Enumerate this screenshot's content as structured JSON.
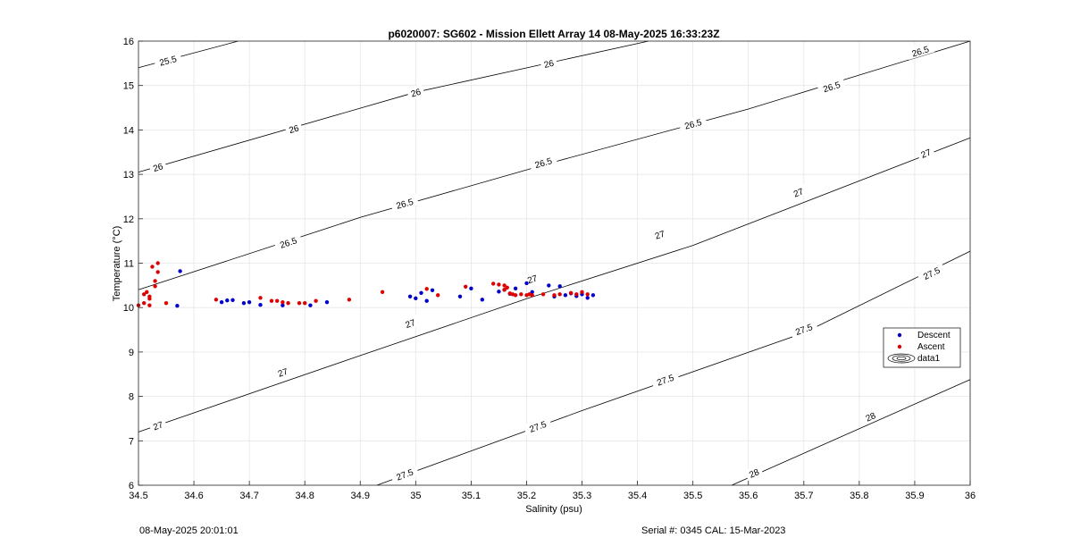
{
  "chart_data": {
    "type": "scatter",
    "title": "p6020007: SG602 - Mission Ellett Array 14 08-May-2025 16:33:23Z",
    "xlabel": "Salinity (psu)",
    "ylabel": "Temperature (°C)",
    "xlim": [
      34.5,
      36
    ],
    "ylim": [
      6,
      16
    ],
    "xticks": [
      "34.5",
      "34.6",
      "34.7",
      "34.8",
      "34.9",
      "35",
      "35.1",
      "35.2",
      "35.3",
      "35.4",
      "35.5",
      "35.6",
      "35.7",
      "35.8",
      "35.9",
      "36"
    ],
    "yticks": [
      "6",
      "7",
      "8",
      "9",
      "10",
      "11",
      "12",
      "13",
      "14",
      "15",
      "16"
    ],
    "grid": true,
    "legend_position": "right-middle",
    "legend": [
      {
        "label": "Descent",
        "color": "#0000cc",
        "marker": "dot"
      },
      {
        "label": "Ascent",
        "color": "#dd0000",
        "marker": "dot"
      },
      {
        "label": "data1",
        "color": "#000000",
        "marker": "contour"
      }
    ],
    "contours": [
      {
        "level": "25.5",
        "points": [
          [
            34.5,
            15.4
          ],
          [
            34.68,
            16.0
          ]
        ],
        "labels": [
          {
            "x": 34.553,
            "y": 15.57
          }
        ]
      },
      {
        "level": "26",
        "points": [
          [
            34.5,
            13.05
          ],
          [
            35.0,
            14.85
          ],
          [
            35.42,
            16.0
          ]
        ],
        "labels": [
          {
            "x": 34.535,
            "y": 13.17
          },
          {
            "x": 34.78,
            "y": 14.03
          },
          {
            "x": 35.0,
            "y": 14.85
          },
          {
            "x": 35.24,
            "y": 15.5
          }
        ]
      },
      {
        "level": "26.5",
        "points": [
          [
            34.5,
            10.4
          ],
          [
            34.9,
            12.03
          ],
          [
            35.25,
            13.28
          ],
          [
            35.6,
            14.47
          ],
          [
            36.0,
            16.0
          ]
        ],
        "labels": [
          {
            "x": 34.77,
            "y": 11.47
          },
          {
            "x": 34.98,
            "y": 12.35
          },
          {
            "x": 35.23,
            "y": 13.27
          },
          {
            "x": 35.5,
            "y": 14.14
          },
          {
            "x": 35.75,
            "y": 14.98
          },
          {
            "x": 35.91,
            "y": 15.78
          }
        ]
      },
      {
        "level": "27",
        "points": [
          [
            34.5,
            7.2
          ],
          [
            34.9,
            8.92
          ],
          [
            35.2,
            10.2
          ],
          [
            35.5,
            11.4
          ],
          [
            36.0,
            13.82
          ]
        ],
        "labels": [
          {
            "x": 34.535,
            "y": 7.35
          },
          {
            "x": 34.76,
            "y": 8.55
          },
          {
            "x": 34.99,
            "y": 9.65
          },
          {
            "x": 35.21,
            "y": 10.65
          },
          {
            "x": 35.44,
            "y": 11.65
          },
          {
            "x": 35.69,
            "y": 12.6
          },
          {
            "x": 35.92,
            "y": 13.48
          }
        ]
      },
      {
        "level": "27.5",
        "points": [
          [
            34.93,
            6.0
          ],
          [
            35.3,
            7.68
          ],
          [
            35.7,
            9.43
          ],
          [
            36.0,
            11.27
          ]
        ],
        "labels": [
          {
            "x": 34.98,
            "y": 6.25
          },
          {
            "x": 35.22,
            "y": 7.33
          },
          {
            "x": 35.45,
            "y": 8.38
          },
          {
            "x": 35.7,
            "y": 9.52
          },
          {
            "x": 35.93,
            "y": 10.78
          }
        ]
      },
      {
        "level": "28",
        "points": [
          [
            35.57,
            6.0
          ],
          [
            36.0,
            8.38
          ]
        ],
        "labels": [
          {
            "x": 35.61,
            "y": 6.28
          },
          {
            "x": 35.82,
            "y": 7.55
          }
        ]
      }
    ],
    "series": [
      {
        "name": "Descent",
        "color": "#0000cc",
        "points": [
          [
            34.575,
            10.82
          ],
          [
            34.57,
            10.04
          ],
          [
            34.65,
            10.12
          ],
          [
            34.66,
            10.16
          ],
          [
            34.67,
            10.17
          ],
          [
            34.69,
            10.1
          ],
          [
            34.7,
            10.12
          ],
          [
            34.72,
            10.06
          ],
          [
            34.76,
            10.05
          ],
          [
            34.81,
            10.05
          ],
          [
            34.84,
            10.12
          ],
          [
            34.99,
            10.25
          ],
          [
            35.0,
            10.21
          ],
          [
            35.01,
            10.33
          ],
          [
            35.02,
            10.15
          ],
          [
            35.03,
            10.39
          ],
          [
            35.08,
            10.25
          ],
          [
            35.1,
            10.43
          ],
          [
            35.12,
            10.18
          ],
          [
            35.15,
            10.36
          ],
          [
            35.16,
            10.4
          ],
          [
            35.17,
            10.31
          ],
          [
            35.18,
            10.43
          ],
          [
            35.2,
            10.55
          ],
          [
            35.21,
            10.35
          ],
          [
            35.24,
            10.5
          ],
          [
            35.25,
            10.25
          ],
          [
            35.26,
            10.48
          ],
          [
            35.27,
            10.28
          ],
          [
            35.28,
            10.32
          ],
          [
            35.29,
            10.26
          ],
          [
            35.3,
            10.3
          ],
          [
            35.31,
            10.22
          ],
          [
            35.32,
            10.28
          ]
        ]
      },
      {
        "name": "Ascent",
        "color": "#dd0000",
        "points": [
          [
            34.5,
            10.05
          ],
          [
            34.51,
            10.1
          ],
          [
            34.51,
            10.3
          ],
          [
            34.515,
            10.35
          ],
          [
            34.52,
            10.2
          ],
          [
            34.52,
            10.25
          ],
          [
            34.52,
            10.05
          ],
          [
            34.525,
            10.92
          ],
          [
            34.53,
            10.48
          ],
          [
            34.53,
            10.6
          ],
          [
            34.535,
            11.0
          ],
          [
            34.535,
            10.8
          ],
          [
            34.55,
            10.1
          ],
          [
            34.64,
            10.18
          ],
          [
            34.72,
            10.22
          ],
          [
            34.74,
            10.15
          ],
          [
            34.75,
            10.15
          ],
          [
            34.76,
            10.12
          ],
          [
            34.77,
            10.1
          ],
          [
            34.79,
            10.1
          ],
          [
            34.8,
            10.1
          ],
          [
            34.82,
            10.15
          ],
          [
            34.88,
            10.18
          ],
          [
            34.94,
            10.35
          ],
          [
            35.02,
            10.42
          ],
          [
            35.04,
            10.28
          ],
          [
            35.09,
            10.47
          ],
          [
            35.14,
            10.54
          ],
          [
            35.15,
            10.52
          ],
          [
            35.16,
            10.4
          ],
          [
            35.16,
            10.5
          ],
          [
            35.165,
            10.45
          ],
          [
            35.17,
            10.32
          ],
          [
            35.175,
            10.3
          ],
          [
            35.18,
            10.28
          ],
          [
            35.19,
            10.3
          ],
          [
            35.2,
            10.28
          ],
          [
            35.205,
            10.3
          ],
          [
            35.21,
            10.28
          ],
          [
            35.23,
            10.3
          ],
          [
            35.25,
            10.28
          ],
          [
            35.26,
            10.3
          ],
          [
            35.28,
            10.33
          ],
          [
            35.29,
            10.3
          ],
          [
            35.3,
            10.35
          ],
          [
            35.31,
            10.3
          ]
        ]
      }
    ]
  },
  "footer": {
    "left": "08-May-2025 20:01:01",
    "right": "Serial #: 0345  CAL: 15-Mar-2023"
  }
}
